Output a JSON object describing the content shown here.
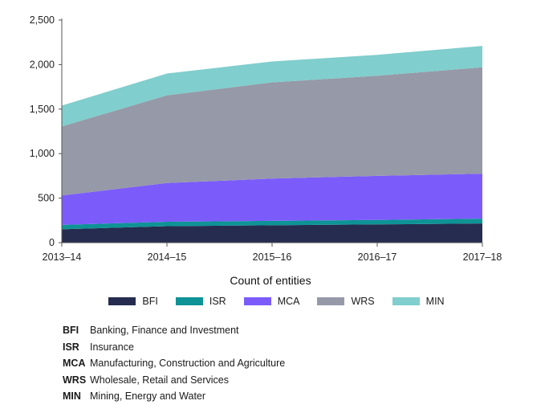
{
  "chart_data": {
    "type": "area",
    "stacked": true,
    "categories": [
      "2013–14",
      "2014–15",
      "2015–16",
      "2016–17",
      "2017–18"
    ],
    "series": [
      {
        "name": "BFI",
        "values": [
          150,
          185,
          195,
          205,
          215
        ],
        "color": "#252c50"
      },
      {
        "name": "ISR",
        "values": [
          50,
          50,
          50,
          50,
          55
        ],
        "color": "#0e9396"
      },
      {
        "name": "MCA",
        "values": [
          330,
          435,
          475,
          495,
          505
        ],
        "color": "#7b5cfa"
      },
      {
        "name": "WRS",
        "values": [
          775,
          985,
          1080,
          1125,
          1195
        ],
        "color": "#9699a8"
      },
      {
        "name": "MIN",
        "values": [
          235,
          245,
          235,
          235,
          240
        ],
        "color": "#80cecd"
      }
    ],
    "ylim": [
      0,
      2500
    ],
    "yticks": [
      0,
      500,
      1000,
      1500,
      2000,
      2500
    ],
    "ytick_labels": [
      "0",
      "500",
      "1,000",
      "1,500",
      "2,000",
      "2,500"
    ],
    "xlabel": "Count of entities",
    "grid": false,
    "legend_position": "bottom"
  },
  "abbreviations": [
    {
      "code": "BFI",
      "text": "Banking, Finance and Investment"
    },
    {
      "code": "ISR",
      "text": "Insurance"
    },
    {
      "code": "MCA",
      "text": "Manufacturing, Construction and Agriculture"
    },
    {
      "code": "WRS",
      "text": "Wholesale, Retail and Services"
    },
    {
      "code": "MIN",
      "text": "Mining, Energy and Water"
    }
  ]
}
